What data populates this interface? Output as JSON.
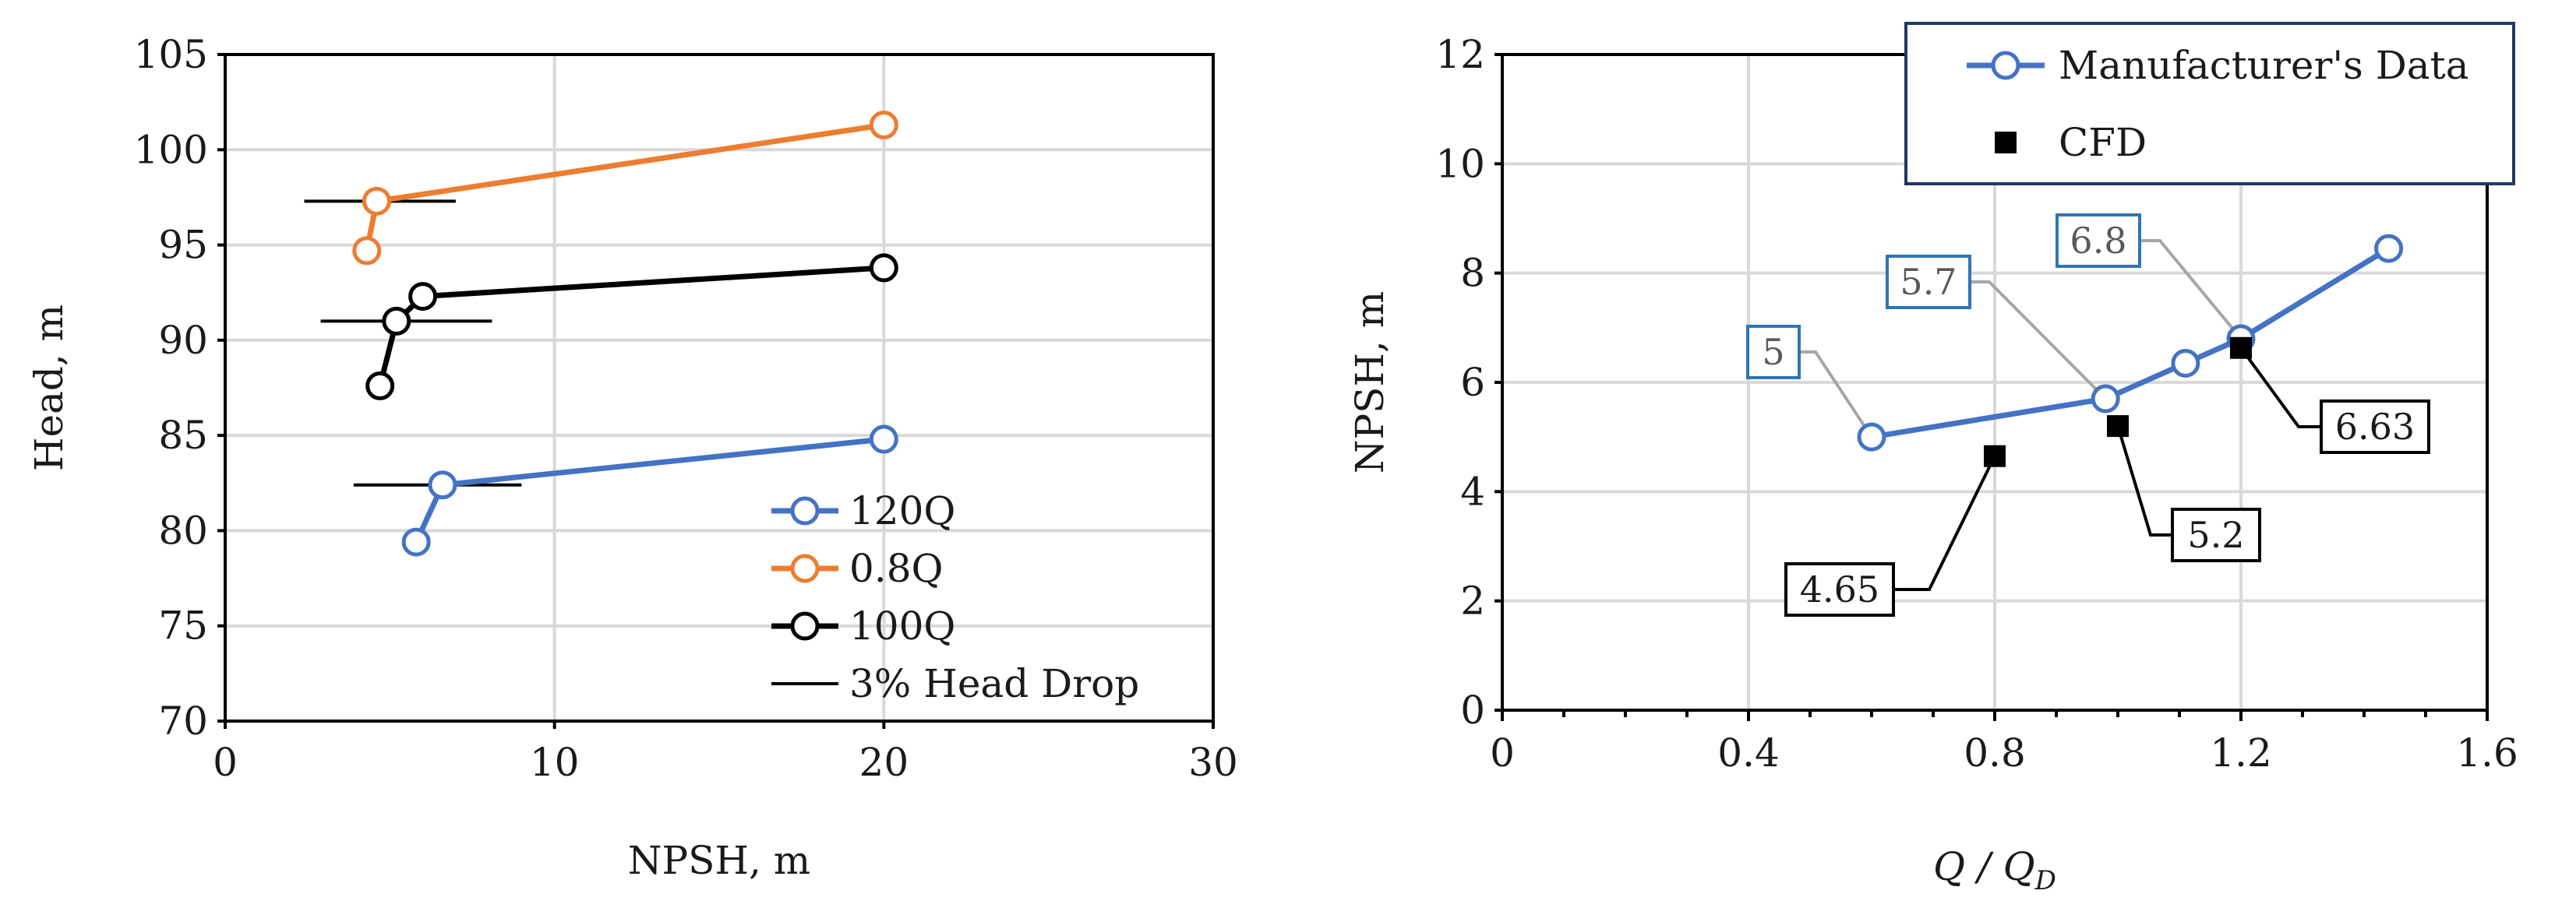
{
  "chart_data": [
    {
      "type": "line",
      "title": "",
      "xlabel": "NPSH, m",
      "ylabel": "Head, m",
      "xlim": [
        0,
        30
      ],
      "ylim": [
        70,
        105
      ],
      "xticks": [
        0,
        10,
        20,
        30
      ],
      "yticks": [
        70,
        75,
        80,
        85,
        90,
        95,
        100,
        105
      ],
      "x_tick_labels": [
        "0",
        "10",
        "20",
        "30"
      ],
      "y_tick_labels": [
        "70",
        "75",
        "80",
        "85",
        "90",
        "95",
        "100",
        "105"
      ],
      "grid": true,
      "legend_position": "bottom-right",
      "series": [
        {
          "name": "120Q",
          "color": "#4472c4",
          "marker": "open-circle",
          "x": [
            5.8,
            6.6,
            20
          ],
          "y": [
            79.4,
            82.4,
            84.8
          ]
        },
        {
          "name": "0.8Q",
          "color": "#ed7d31",
          "marker": "open-circle",
          "x": [
            4.3,
            4.6,
            20
          ],
          "y": [
            94.7,
            97.3,
            101.3
          ]
        },
        {
          "name": "100Q",
          "color": "#000000",
          "marker": "open-circle",
          "x": [
            4.7,
            5.2,
            6,
            20
          ],
          "y": [
            87.6,
            91,
            92.3,
            93.8
          ]
        }
      ],
      "reference_lines": {
        "name": "3% Head Drop",
        "color": "#000000",
        "segments": [
          {
            "x": [
              2.4,
              7
            ],
            "y": 97.3
          },
          {
            "x": [
              2.9,
              8.1
            ],
            "y": 91
          },
          {
            "x": [
              3.9,
              9
            ],
            "y": 82.4
          }
        ]
      }
    },
    {
      "type": "line",
      "title": "",
      "xlabel": "Q / QD",
      "xlabel_main": "Q / Q",
      "xlabel_sub": "D",
      "ylabel": "NPSH, m",
      "xlim": [
        0,
        1.6
      ],
      "ylim": [
        0,
        12
      ],
      "xticks": [
        0,
        0.4,
        0.8,
        1.2,
        1.6
      ],
      "yticks": [
        0,
        2,
        4,
        6,
        8,
        10,
        12
      ],
      "x_tick_labels": [
        "0",
        "0.4",
        "0.8",
        "1.2",
        "1.6"
      ],
      "y_tick_labels": [
        "0",
        "2",
        "4",
        "6",
        "8",
        "10",
        "12"
      ],
      "grid": true,
      "legend_position": "top-right",
      "series": [
        {
          "name": "Manufacturer's Data",
          "color": "#4472c4",
          "marker": "open-circle",
          "x": [
            0.6,
            0.98,
            1.11,
            1.2,
            1.44
          ],
          "y": [
            5,
            5.7,
            6.35,
            6.8,
            8.45
          ]
        },
        {
          "name": "CFD",
          "color": "#000000",
          "marker": "filled-square",
          "x": [
            0.8,
            1.0,
            1.2
          ],
          "y": [
            4.65,
            5.2,
            6.63
          ]
        }
      ],
      "annotations": [
        {
          "text": "5",
          "x": 0.6,
          "y": 5,
          "style": "manufacturer"
        },
        {
          "text": "5.7",
          "x": 0.98,
          "y": 5.7,
          "style": "manufacturer"
        },
        {
          "text": "6.8",
          "x": 1.2,
          "y": 6.8,
          "style": "manufacturer"
        },
        {
          "text": "4.65",
          "x": 0.8,
          "y": 4.65,
          "style": "cfd"
        },
        {
          "text": "5.2",
          "x": 1.0,
          "y": 5.2,
          "style": "cfd"
        },
        {
          "text": "6.63",
          "x": 1.2,
          "y": 6.63,
          "style": "cfd"
        }
      ]
    }
  ],
  "colors": {
    "grid": "#d9d9d9",
    "axis": "#000000",
    "manufacturer_callout_border": "#2e75b6",
    "manufacturer_callout_text": "#595959",
    "cfd_callout_border": "#000000",
    "manufacturer_leader": "#a6a6a6",
    "cfd_leader": "#000000",
    "legend_border": "#1f3864"
  }
}
